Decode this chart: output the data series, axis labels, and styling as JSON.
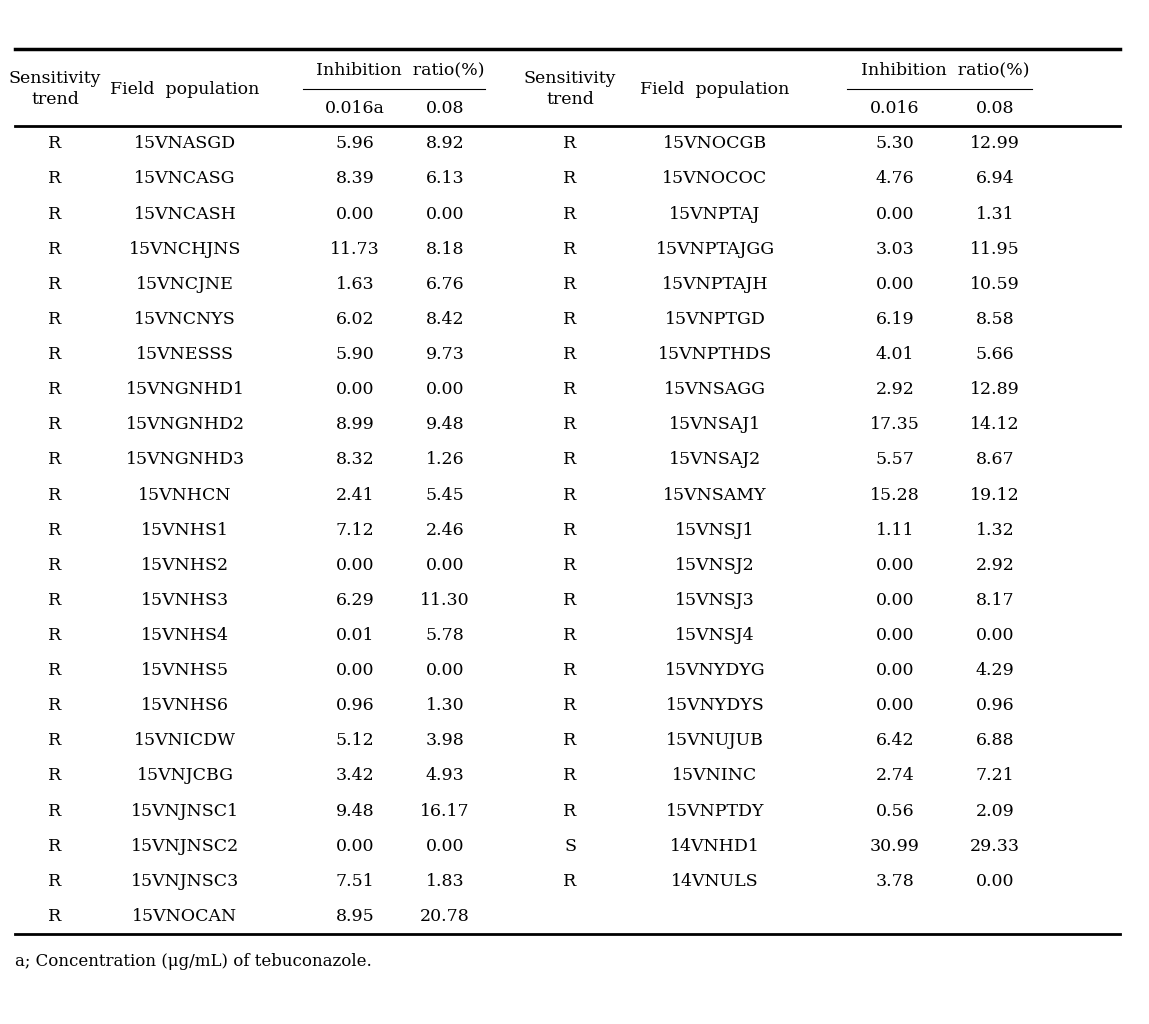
{
  "left_table": [
    [
      "R",
      "15VNASGD",
      "5.96",
      "8.92"
    ],
    [
      "R",
      "15VNCASG",
      "8.39",
      "6.13"
    ],
    [
      "R",
      "15VNCASH",
      "0.00",
      "0.00"
    ],
    [
      "R",
      "15VNCHJNS",
      "11.73",
      "8.18"
    ],
    [
      "R",
      "15VNCJNE",
      "1.63",
      "6.76"
    ],
    [
      "R",
      "15VNCNYS",
      "6.02",
      "8.42"
    ],
    [
      "R",
      "15VNESSS",
      "5.90",
      "9.73"
    ],
    [
      "R",
      "15VNGNHD1",
      "0.00",
      "0.00"
    ],
    [
      "R",
      "15VNGNHD2",
      "8.99",
      "9.48"
    ],
    [
      "R",
      "15VNGNHD3",
      "8.32",
      "1.26"
    ],
    [
      "R",
      "15VNHCN",
      "2.41",
      "5.45"
    ],
    [
      "R",
      "15VNHS1",
      "7.12",
      "2.46"
    ],
    [
      "R",
      "15VNHS2",
      "0.00",
      "0.00"
    ],
    [
      "R",
      "15VNHS3",
      "6.29",
      "11.30"
    ],
    [
      "R",
      "15VNHS4",
      "0.01",
      "5.78"
    ],
    [
      "R",
      "15VNHS5",
      "0.00",
      "0.00"
    ],
    [
      "R",
      "15VNHS6",
      "0.96",
      "1.30"
    ],
    [
      "R",
      "15VNICDW",
      "5.12",
      "3.98"
    ],
    [
      "R",
      "15VNJCBG",
      "3.42",
      "4.93"
    ],
    [
      "R",
      "15VNJNSC1",
      "9.48",
      "16.17"
    ],
    [
      "R",
      "15VNJNSC2",
      "0.00",
      "0.00"
    ],
    [
      "R",
      "15VNJNSC3",
      "7.51",
      "1.83"
    ],
    [
      "R",
      "15VNOCAN",
      "8.95",
      "20.78"
    ]
  ],
  "right_table": [
    [
      "R",
      "15VNOCGB",
      "5.30",
      "12.99"
    ],
    [
      "R",
      "15VNOCOC",
      "4.76",
      "6.94"
    ],
    [
      "R",
      "15VNPTAJ",
      "0.00",
      "1.31"
    ],
    [
      "R",
      "15VNPTAJGG",
      "3.03",
      "11.95"
    ],
    [
      "R",
      "15VNPTAJH",
      "0.00",
      "10.59"
    ],
    [
      "R",
      "15VNPTGD",
      "6.19",
      "8.58"
    ],
    [
      "R",
      "15VNPTHDS",
      "4.01",
      "5.66"
    ],
    [
      "R",
      "15VNSAGG",
      "2.92",
      "12.89"
    ],
    [
      "R",
      "15VNSAJ1",
      "17.35",
      "14.12"
    ],
    [
      "R",
      "15VNSAJ2",
      "5.57",
      "8.67"
    ],
    [
      "R",
      "15VNSAMY",
      "15.28",
      "19.12"
    ],
    [
      "R",
      "15VNSJ1",
      "1.11",
      "1.32"
    ],
    [
      "R",
      "15VNSJ2",
      "0.00",
      "2.92"
    ],
    [
      "R",
      "15VNSJ3",
      "0.00",
      "8.17"
    ],
    [
      "R",
      "15VNSJ4",
      "0.00",
      "0.00"
    ],
    [
      "R",
      "15VNYDYG",
      "0.00",
      "4.29"
    ],
    [
      "R",
      "15VNYDYS",
      "0.00",
      "0.96"
    ],
    [
      "R",
      "15VNUJUB",
      "6.42",
      "6.88"
    ],
    [
      "R",
      "15VNINC",
      "2.74",
      "7.21"
    ],
    [
      "R",
      "15VNPTDY",
      "0.56",
      "2.09"
    ],
    [
      "S",
      "14VNHD1",
      "30.99",
      "29.33"
    ],
    [
      "R",
      "14VNULS",
      "3.78",
      "0.00"
    ]
  ],
  "inhibition_label": "Inhibition  ratio(%)",
  "footnote": "a; Concentration (μg/mL) of tebuconazole.",
  "bg_color": "#ffffff",
  "text_color": "#000000",
  "font_size": 12.5,
  "footnote_font_size": 12
}
